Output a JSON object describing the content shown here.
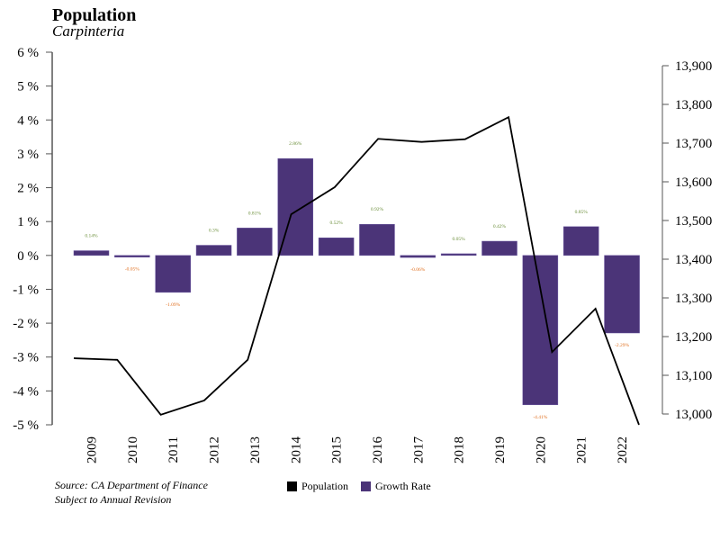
{
  "header": {
    "title": "Population",
    "subtitle": "Carpinteria"
  },
  "footer": {
    "source_line1": "Source: CA Department of Finance",
    "source_line2": "Subject to Annual Revision"
  },
  "colors": {
    "bar": "#4b3478",
    "line": "#000000",
    "positive_label": "#6b8e3a",
    "negative_label": "#e07020",
    "axis": "#000000"
  },
  "chart_data": {
    "type": "bar+line",
    "title": "Population",
    "subtitle": "Carpinteria",
    "categories": [
      "2009",
      "2010",
      "2011",
      "2012",
      "2013",
      "2014",
      "2015",
      "2016",
      "2017",
      "2018",
      "2019",
      "2020",
      "2021",
      "2022"
    ],
    "series": [
      {
        "name": "Growth Rate",
        "type": "bar",
        "axis": "left",
        "values": [
          0.14,
          -0.05,
          -1.09,
          0.3,
          0.81,
          2.86,
          0.52,
          0.92,
          -0.06,
          0.05,
          0.42,
          -4.41,
          0.85,
          -2.29
        ],
        "labels": [
          "0.14%",
          "-0.05%",
          "-1.09%",
          "0.3%",
          "0.81%",
          "2.86%",
          "0.52%",
          "0.92%",
          "-0.06%",
          "0.05%",
          "0.42%",
          "-4.41%",
          "0.85%",
          "-2.29%"
        ]
      },
      {
        "name": "Population",
        "type": "line",
        "axis": "right",
        "values": [
          13144,
          13140,
          12998,
          13035,
          13140,
          13516,
          13586,
          13711,
          13703,
          13710,
          13767,
          13160,
          13272,
          12968
        ]
      }
    ],
    "left_axis": {
      "ylim": [
        -5,
        6
      ],
      "ticks": [
        6,
        5,
        4,
        3,
        2,
        1,
        0,
        -1,
        -2,
        -3,
        -4,
        -5
      ],
      "tick_labels": [
        "6 %",
        "5 %",
        "4 %",
        "3 %",
        "2 %",
        "1 %",
        "0 %",
        "-1 %",
        "-2 %",
        "-3 %",
        "-4 %",
        "-5 %"
      ]
    },
    "right_axis": {
      "ylim": [
        13000,
        13900
      ],
      "ticks": [
        13900,
        13800,
        13700,
        13600,
        13500,
        13400,
        13300,
        13200,
        13100,
        13000
      ],
      "tick_labels": [
        "13,900",
        "13,800",
        "13,700",
        "13,600",
        "13,500",
        "13,400",
        "13,300",
        "13,200",
        "13,100",
        "13,000"
      ]
    },
    "legend": {
      "placement": "bottom-center",
      "entries": [
        "Population",
        "Growth Rate"
      ]
    },
    "grid": false
  }
}
